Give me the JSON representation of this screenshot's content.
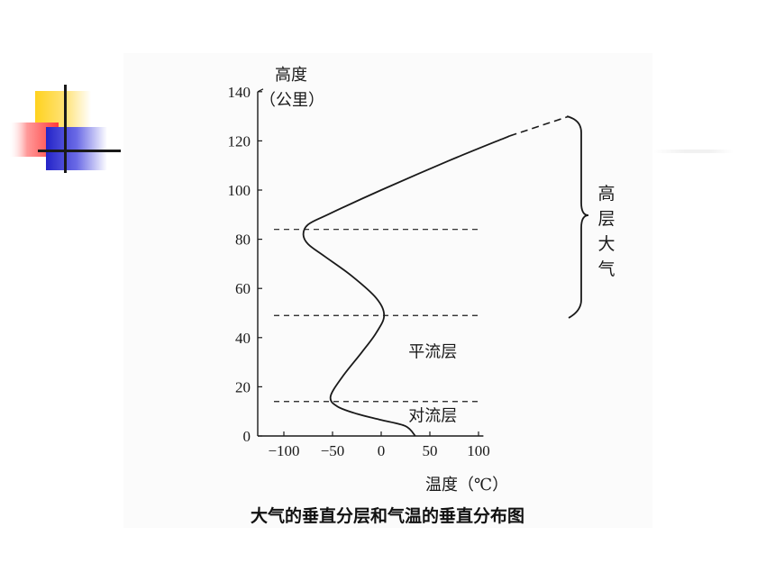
{
  "colors": {
    "deco_yellow": "#ffd21e",
    "deco_red": "#ff4a4a",
    "deco_blue": "#2f2fd0",
    "ink": "#1a1a1a"
  },
  "chart_data": {
    "type": "line",
    "title": "大气的垂直分层和气温的垂直分布图",
    "ylabel": "高度（公里）",
    "xlabel": "温度（℃）",
    "xlim": [
      -120,
      105
    ],
    "ylim": [
      0,
      140
    ],
    "x_ticks": [
      -100,
      -50,
      0,
      50,
      100
    ],
    "x_tick_labels": [
      "−100",
      "−50",
      "0",
      "50",
      "100"
    ],
    "y_ticks": [
      0,
      20,
      40,
      60,
      80,
      100,
      120,
      140
    ],
    "y_tick_labels": [
      "0",
      "20",
      "40",
      "60",
      "80",
      "100",
      "120",
      "140"
    ],
    "series": [
      {
        "values": [
          {
            "x": 35,
            "y": 0
          },
          {
            "x": 25,
            "y": 4
          },
          {
            "x": 0,
            "y": 6.5
          },
          {
            "x": -25,
            "y": 9
          },
          {
            "x": -45,
            "y": 12
          },
          {
            "x": -52,
            "y": 16
          },
          {
            "x": -40,
            "y": 24
          },
          {
            "x": -20,
            "y": 34
          },
          {
            "x": -5,
            "y": 42
          },
          {
            "x": 3,
            "y": 49
          },
          {
            "x": -5,
            "y": 56
          },
          {
            "x": -30,
            "y": 65
          },
          {
            "x": -58,
            "y": 73
          },
          {
            "x": -75,
            "y": 78
          },
          {
            "x": -80,
            "y": 82
          },
          {
            "x": -75,
            "y": 86
          },
          {
            "x": -55,
            "y": 90
          },
          {
            "x": 0,
            "y": 100
          },
          {
            "x": 70,
            "y": 112
          },
          {
            "x": 132,
            "y": 122
          }
        ],
        "extension_dashed": [
          {
            "x": 132,
            "y": 122
          },
          {
            "x": 193,
            "y": 130
          }
        ]
      }
    ],
    "boundary_lines_km": [
      14,
      49,
      84
    ],
    "layer_labels": [
      {
        "text": "对流层",
        "x": 53,
        "y": 6
      },
      {
        "text": "平流层",
        "x": 53,
        "y": 32
      }
    ],
    "bracket": {
      "label_chars": [
        "高",
        "层",
        "大",
        "气"
      ],
      "from_km": 48,
      "to_km": 130
    }
  }
}
